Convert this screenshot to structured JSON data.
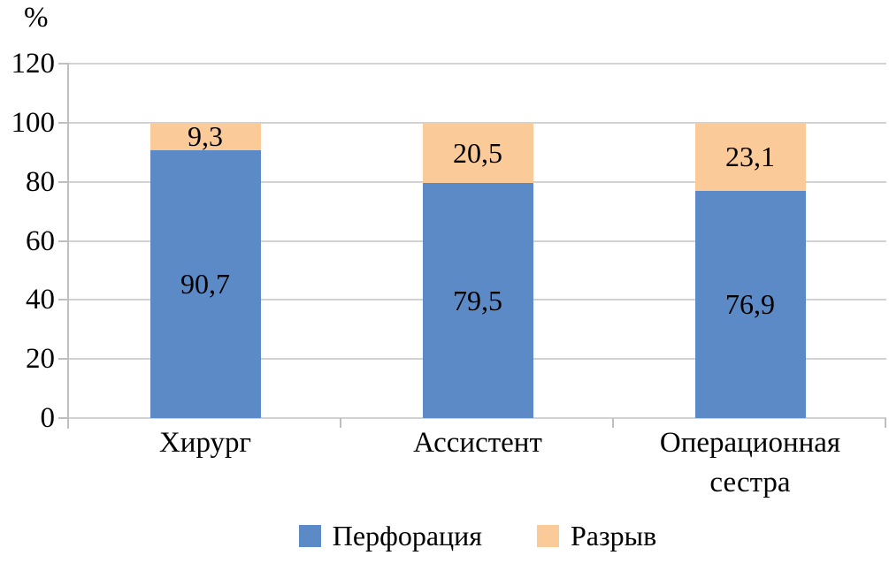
{
  "chart_data": {
    "type": "bar",
    "stacked": true,
    "title": "",
    "ylabel": "%",
    "xlabel": "",
    "categories": [
      "Хирург",
      "Ассистент",
      "Операционная сестра"
    ],
    "series": [
      {
        "name": "Перфорация",
        "color": "#5b8ac6",
        "values": [
          90.7,
          79.5,
          76.9
        ],
        "labels": [
          "90,7",
          "79,5",
          "76,9"
        ]
      },
      {
        "name": "Разрыв",
        "color": "#faca98",
        "values": [
          9.3,
          20.5,
          23.1
        ],
        "labels": [
          "9,3",
          "20,5",
          "23,1"
        ]
      }
    ],
    "ylim": [
      0,
      120
    ],
    "yticks": [
      0,
      20,
      40,
      60,
      80,
      100,
      120
    ],
    "ytick_labels": [
      "0",
      "20",
      "40",
      "60",
      "80",
      "100",
      "120"
    ],
    "grid": true,
    "legend_position": "bottom"
  },
  "colors": {
    "background": "#ffffff",
    "gridline": "#d2d2d2",
    "axis": "#bfbfbf",
    "text": "#000000",
    "series_blue": "#5b8ac6",
    "series_peach": "#faca98"
  }
}
